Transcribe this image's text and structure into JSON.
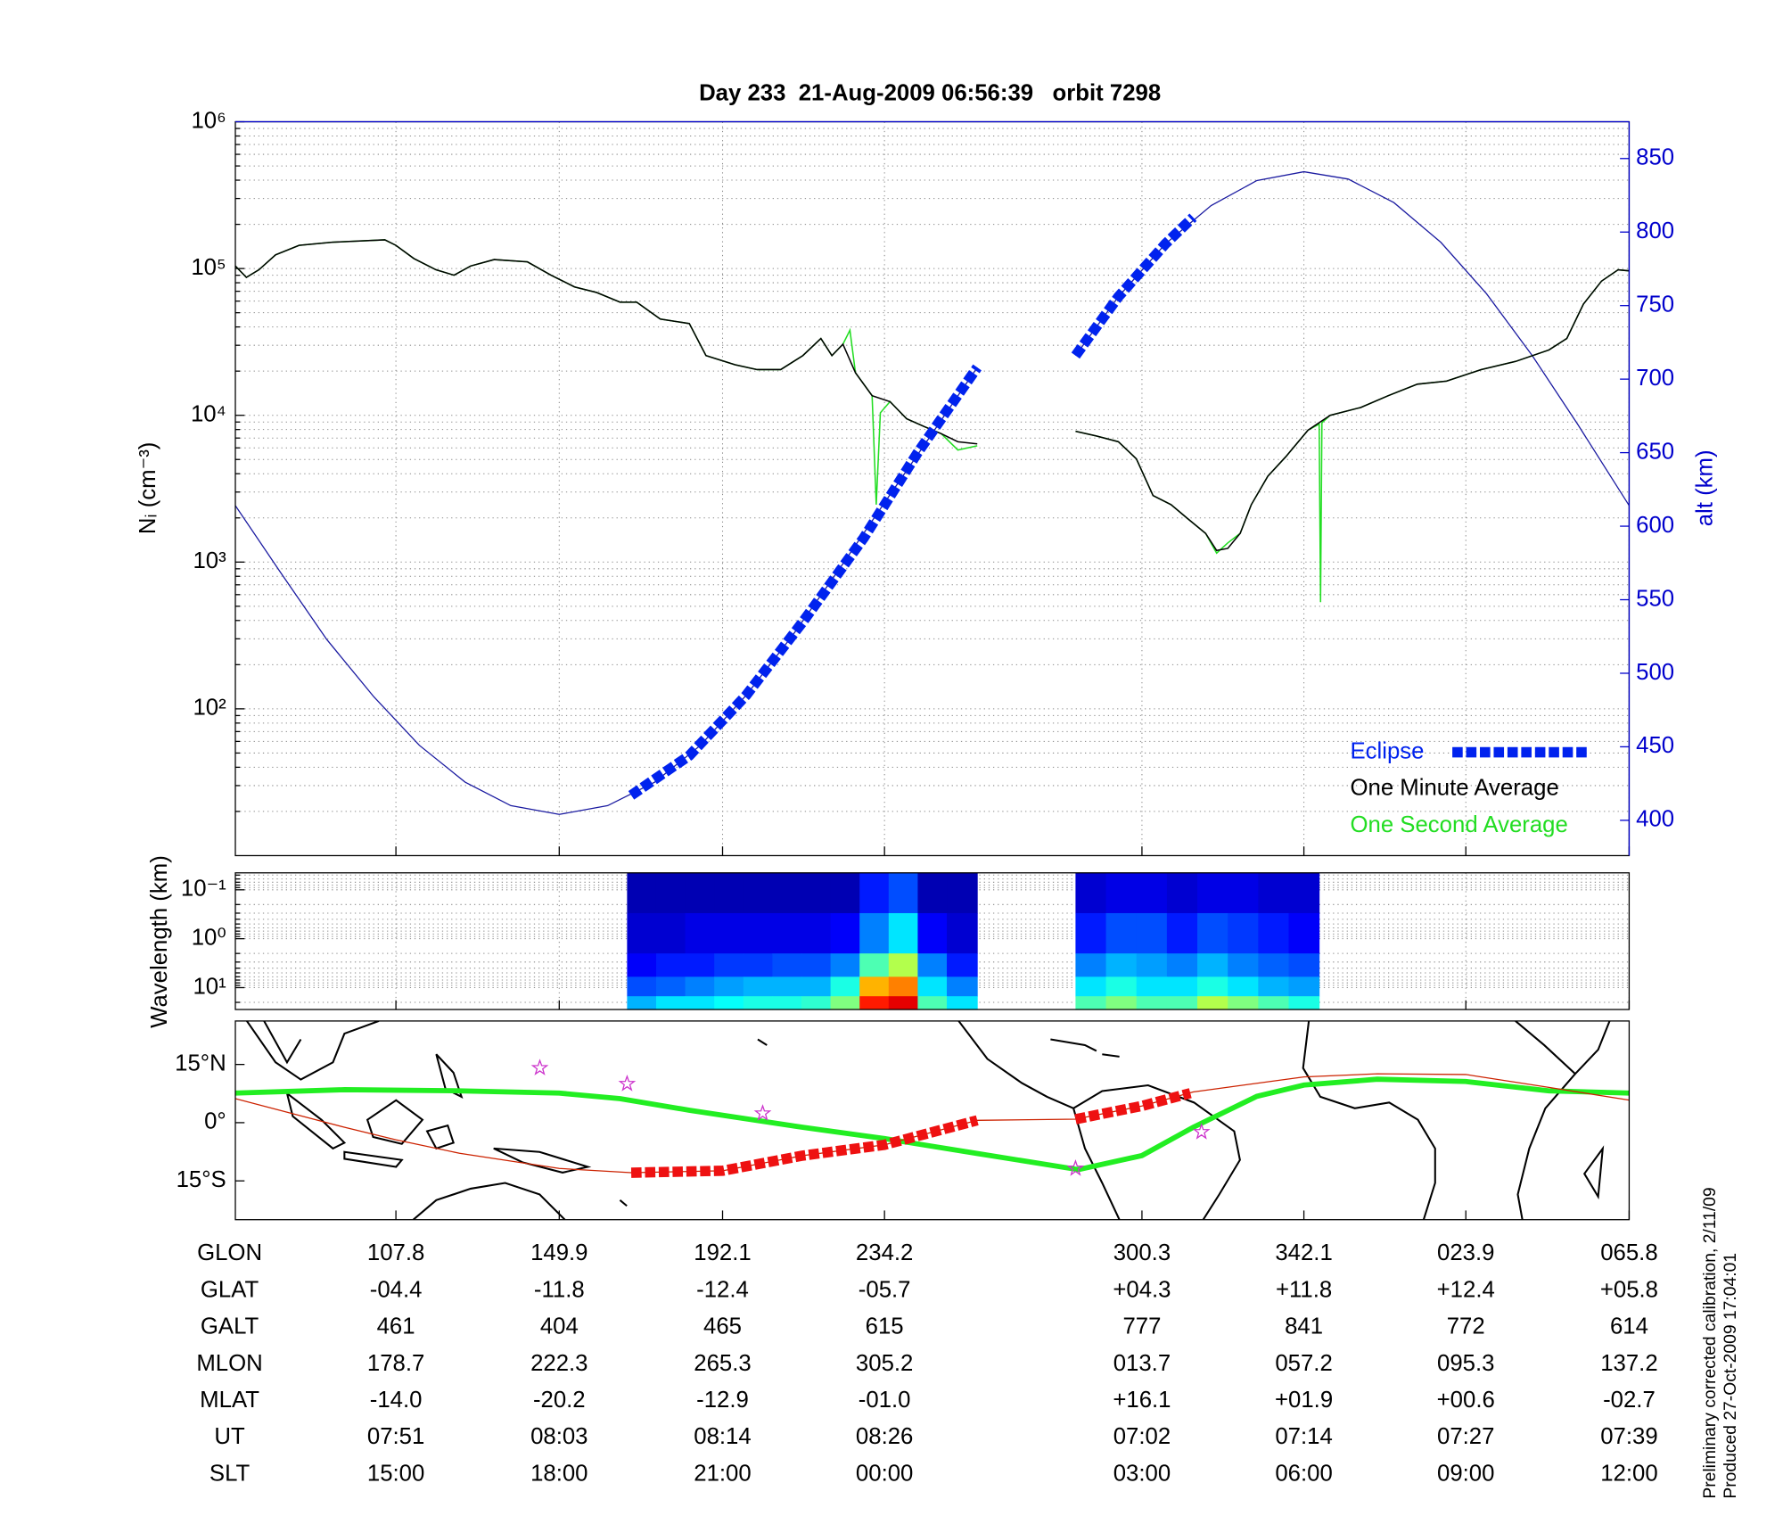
{
  "chart_data": [
    {
      "type": "line",
      "title": "Day 233  21-Aug-2009 06:56:39   orbit 7298",
      "y_label": "Nᵢ (cm⁻³)",
      "y2_label": "alt (km)",
      "log_y": true,
      "grid": true,
      "legend": "lower right",
      "xlim": [
        0,
        100.7
      ],
      "xticks": [
        11.6,
        23.4,
        35.2,
        46.9,
        65.5,
        77.2,
        88.9,
        100.7
      ],
      "ylim": [
        10,
        1000000
      ],
      "yticks": [
        {
          "value": 100,
          "label": "10²"
        },
        {
          "value": 1000,
          "label": "10³"
        },
        {
          "value": 10000,
          "label": "10⁴"
        },
        {
          "value": 100000,
          "label": "10⁵"
        },
        {
          "value": 1000000,
          "label": "10⁶"
        }
      ],
      "y2lim": [
        376,
        875
      ],
      "y2ticks": [
        400,
        450,
        500,
        550,
        600,
        650,
        700,
        750,
        800,
        850
      ],
      "y2_color": "#0000cc",
      "series": [
        {
          "name": "Eclipse",
          "color": "#0022ee",
          "style": "dashed",
          "axis": "y2",
          "x": [
            28.6,
            32.8,
            36.9,
            41.0,
            45.4,
            49.3,
            53.6,
            57.0,
            60.7,
            63.8,
            67.2,
            69.2
          ],
          "values": [
            417,
            444,
            485,
            535,
            592,
            650,
            708,
            null,
            716,
            756,
            792,
            810
          ]
        },
        {
          "name": "One Minute Average",
          "color": "#000000",
          "style": "solid",
          "x": [
            0,
            0.8,
            1.7,
            2.9,
            4.6,
            7.0,
            10.8,
            11.6,
            12.9,
            14.5,
            15.8,
            17.0,
            18.7,
            21.1,
            22.8,
            24.5,
            26.1,
            27.8,
            29.0,
            30.7,
            32.8,
            34.0,
            36.1,
            37.7,
            39.4,
            41.0,
            42.3,
            43.1,
            43.9,
            44.8,
            46.0,
            47.3,
            48.5,
            49.8,
            51.0,
            52.2,
            53.6,
            57.0,
            60.7,
            62.2,
            63.8,
            65.1,
            66.3,
            67.6,
            68.8,
            70.1,
            70.9,
            71.7,
            72.6,
            73.4,
            74.6,
            75.9,
            77.5,
            79.1,
            81.3,
            83.3,
            85.4,
            87.5,
            90.0,
            92.5,
            94.9,
            96.2,
            97.4,
            98.7,
            99.9,
            100.7
          ],
          "values": [
            104000,
            87000,
            98000,
            124000,
            144000,
            151000,
            157000,
            144000,
            117000,
            98000,
            90000,
            104000,
            115000,
            111000,
            90000,
            75000,
            68600,
            59000,
            59000,
            45300,
            42200,
            25500,
            22100,
            20500,
            20500,
            25500,
            33400,
            25500,
            30500,
            19500,
            13600,
            12400,
            9480,
            8350,
            7500,
            6610,
            6380,
            null,
            7780,
            7230,
            6610,
            5050,
            2840,
            2460,
            1980,
            1570,
            1200,
            1240,
            1570,
            2460,
            3850,
            5230,
            7920,
            10000,
            11300,
            13600,
            16300,
            17100,
            20500,
            23300,
            27900,
            33400,
            57300,
            82000,
            98000,
            96500
          ]
        },
        {
          "name": "One Second Average",
          "color": "#22dd22",
          "style": "solid",
          "x": [
            0,
            0.8,
            1.7,
            2.9,
            4.6,
            7.0,
            10.8,
            11.6,
            12.9,
            14.5,
            15.8,
            17.0,
            18.7,
            21.1,
            22.8,
            24.5,
            26.1,
            27.8,
            29.0,
            30.7,
            32.8,
            34.0,
            36.1,
            37.7,
            39.4,
            41.0,
            42.3,
            43.1,
            43.9,
            44.4,
            44.8,
            46.0,
            46.3,
            46.6,
            47.3,
            48.5,
            49.8,
            51.0,
            52.2,
            53.6,
            57.0,
            60.7,
            62.2,
            63.8,
            65.1,
            66.3,
            67.6,
            68.8,
            70.1,
            70.9,
            71.7,
            72.6,
            73.4,
            74.6,
            75.9,
            77.5,
            78.3,
            78.4,
            78.5,
            79.1,
            81.3,
            83.3,
            85.4,
            87.5,
            90.0,
            92.5,
            94.9,
            96.2,
            97.4,
            98.7,
            99.9,
            100.7
          ],
          "values": [
            104000,
            87000,
            98000,
            124000,
            144000,
            151000,
            157000,
            144000,
            117000,
            98000,
            90000,
            104000,
            115000,
            111000,
            90000,
            75000,
            68600,
            59000,
            59000,
            45300,
            42200,
            25500,
            22100,
            20500,
            20500,
            25500,
            33400,
            25500,
            30500,
            38000,
            19500,
            13600,
            2460,
            10400,
            12400,
            9480,
            8350,
            7500,
            5800,
            6200,
            null,
            7780,
            7230,
            6610,
            5050,
            2840,
            2460,
            1980,
            1570,
            1150,
            1350,
            1570,
            2460,
            3850,
            5230,
            7920,
            8700,
            533,
            8900,
            10000,
            11300,
            13600,
            16300,
            17100,
            20500,
            23300,
            27900,
            33400,
            57300,
            82000,
            98000,
            96500
          ]
        },
        {
          "color": "#1a1aa0",
          "style": "thin",
          "axis": "y2",
          "x": [
            0,
            3.3,
            6.6,
            10.0,
            13.3,
            16.6,
            19.9,
            23.4,
            26.9,
            30.3,
            33.6,
            36.9,
            40.2,
            43.5,
            46.9,
            50.2,
            53.6,
            57.0,
            60.7,
            63.8,
            67.2,
            70.5,
            73.8,
            77.2,
            80.4,
            83.7,
            87.1,
            90.4,
            93.7,
            97.0,
            100.7
          ],
          "values": [
            614,
            568,
            523,
            484,
            451,
            426,
            410,
            404,
            410,
            426,
            451,
            485,
            525,
            569,
            616,
            661,
            708,
            null,
            716,
            756,
            792,
            818,
            835,
            841,
            836,
            820,
            793,
            758,
            716,
            669,
            614
          ]
        }
      ]
    },
    {
      "type": "heatmap",
      "y_label": "Wavelength (km)",
      "log_y": true,
      "y_reversed": true,
      "grid": true,
      "colormap": "jet",
      "xlim": [
        0,
        100.7
      ],
      "xticks": [
        11.6,
        23.4,
        35.2,
        46.9,
        65.5,
        77.2,
        88.9,
        100.7
      ],
      "ylim": [
        0.045,
        28
      ],
      "yticks": [
        {
          "value": 0.1,
          "label": "10⁻¹"
        },
        {
          "value": 1,
          "label": "10⁰"
        },
        {
          "value": 10,
          "label": "10¹"
        }
      ],
      "ybins": [
        0.045,
        0.3,
        2,
        6,
        15,
        28
      ],
      "zlim": [
        0,
        1
      ],
      "blocks": [
        {
          "xbins": [
            28.3,
            30.4,
            32.5,
            34.6,
            36.7,
            38.8,
            40.9,
            43.0,
            45.1,
            47.2,
            49.3,
            51.4,
            53.6
          ],
          "z": [
            [
              0.05,
              0.05,
              0.05,
              0.05,
              0.05,
              0.05,
              0.05,
              0.05,
              0.15,
              0.2,
              0.05,
              0.05
            ],
            [
              0.08,
              0.08,
              0.1,
              0.1,
              0.1,
              0.1,
              0.1,
              0.12,
              0.25,
              0.35,
              0.12,
              0.08
            ],
            [
              0.12,
              0.15,
              0.15,
              0.18,
              0.18,
              0.2,
              0.2,
              0.25,
              0.45,
              0.55,
              0.25,
              0.15
            ],
            [
              0.2,
              0.22,
              0.25,
              0.28,
              0.3,
              0.3,
              0.3,
              0.4,
              0.7,
              0.75,
              0.35,
              0.25
            ],
            [
              0.3,
              0.35,
              0.35,
              0.38,
              0.4,
              0.4,
              0.42,
              0.5,
              0.85,
              0.9,
              0.45,
              0.35
            ]
          ]
        },
        {
          "xbins": [
            60.7,
            62.9,
            65.1,
            67.3,
            69.5,
            71.7,
            73.9,
            76.1,
            78.3
          ],
          "z": [
            [
              0.08,
              0.1,
              0.1,
              0.08,
              0.1,
              0.1,
              0.08,
              0.08
            ],
            [
              0.15,
              0.2,
              0.2,
              0.15,
              0.2,
              0.18,
              0.15,
              0.12
            ],
            [
              0.25,
              0.3,
              0.28,
              0.25,
              0.3,
              0.25,
              0.22,
              0.2
            ],
            [
              0.35,
              0.4,
              0.35,
              0.35,
              0.4,
              0.35,
              0.3,
              0.28
            ],
            [
              0.45,
              0.5,
              0.45,
              0.45,
              0.55,
              0.5,
              0.45,
              0.4
            ]
          ]
        }
      ]
    },
    {
      "type": "map",
      "xlim": [
        0,
        100.7
      ],
      "xticks": [
        11.6,
        23.4,
        35.2,
        46.9,
        65.5,
        77.2,
        88.9,
        100.7
      ],
      "ylim": [
        -25,
        26.2
      ],
      "yticks": [
        {
          "value": 15,
          "label": "15°N"
        },
        {
          "value": 0,
          "label": "0°"
        },
        {
          "value": -15,
          "label": "15°S"
        }
      ],
      "series": [
        {
          "color": "#22ee22",
          "style": "thick",
          "x": [
            0,
            7.9,
            16.2,
            23.4,
            27.8,
            32.8,
            41.0,
            46.9,
            53.5,
            60.9,
            65.5,
            69.2,
            73.8,
            77.2,
            82.5,
            88.9,
            94.9,
            100.7
          ],
          "values": [
            7.6,
            8.5,
            8.2,
            7.6,
            6.2,
            3.2,
            -1.2,
            -4.1,
            -7.9,
            -12.1,
            -8.5,
            -1.2,
            6.8,
            9.7,
            11.2,
            10.6,
            8.2,
            7.6
          ]
        },
        {
          "color": "#cc2200",
          "style": "thin",
          "x": [
            0,
            7.9,
            11.6,
            16.2,
            23.4,
            28.6,
            35.2,
            41.0,
            46.9,
            53.6,
            60.7,
            65.5,
            69.2,
            77.2,
            82.5,
            88.9,
            94.9,
            100.7
          ],
          "values": [
            6.2,
            -1.2,
            -4.4,
            -7.9,
            -11.8,
            -12.9,
            -12.4,
            -8.5,
            -5.7,
            0.6,
            0.9,
            4.3,
            7.9,
            11.8,
            12.6,
            12.4,
            9.1,
            5.8
          ]
        },
        {
          "color": "#ee1111",
          "style": "dashed",
          "x": [
            28.6,
            35.2,
            41.0,
            46.9,
            53.6,
            57.0,
            60.7,
            65.5,
            69.0
          ],
          "values": [
            -12.9,
            -12.4,
            -8.5,
            -5.7,
            0.6,
            null,
            0.9,
            4.3,
            7.6
          ]
        },
        {
          "color": "#cc33cc",
          "style": "markers",
          "x": [
            22.0,
            28.3,
            38.1,
            60.7,
            69.8
          ],
          "values": [
            14.1,
            10.0,
            2.4,
            -11.8,
            -2.4
          ]
        }
      ]
    }
  ],
  "table": {
    "rows": [
      {
        "name": "GLON",
        "values": [
          "107.8",
          "149.9",
          "192.1",
          "234.2",
          "300.3",
          "342.1",
          "023.9",
          "065.8"
        ]
      },
      {
        "name": "GLAT",
        "values": [
          "-04.4",
          "-11.8",
          "-12.4",
          "-05.7",
          "+04.3",
          "+11.8",
          "+12.4",
          "+05.8"
        ]
      },
      {
        "name": "GALT",
        "values": [
          "461",
          "404",
          "465",
          "615",
          "777",
          "841",
          "772",
          "614"
        ]
      },
      {
        "name": "MLON",
        "values": [
          "178.7",
          "222.3",
          "265.3",
          "305.2",
          "013.7",
          "057.2",
          "095.3",
          "137.2"
        ]
      },
      {
        "name": "MLAT",
        "values": [
          "-14.0",
          "-20.2",
          "-12.9",
          "-01.0",
          "+16.1",
          "+01.9",
          "+00.6",
          "-02.7"
        ]
      },
      {
        "name": "UT",
        "values": [
          "07:51",
          "08:03",
          "08:14",
          "08:26",
          "07:02",
          "07:14",
          "07:27",
          "07:39"
        ]
      },
      {
        "name": "SLT",
        "values": [
          "15:00",
          "18:00",
          "21:00",
          "00:00",
          "03:00",
          "06:00",
          "09:00",
          "12:00"
        ]
      }
    ]
  },
  "notes": [
    "Preliminary corrected calibration, 2/11/09",
    "Produced 27-Oct-2009 17:04:01"
  ]
}
